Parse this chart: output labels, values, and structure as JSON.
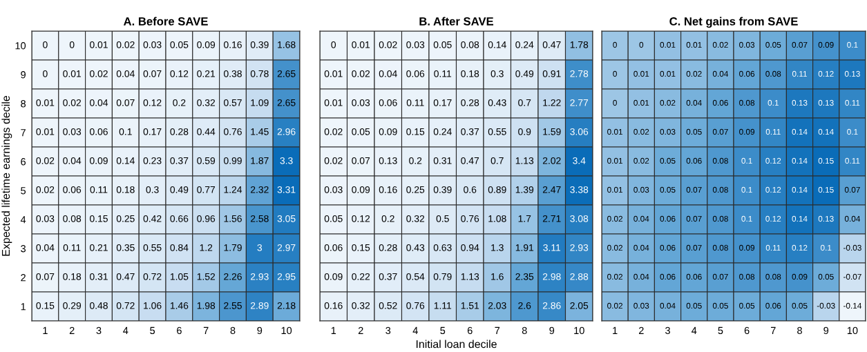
{
  "chart_data": [
    {
      "type": "heatmap",
      "title": "A. Before SAVE",
      "ylabel": "Expected lifetime earnings decile",
      "data_labels": true,
      "categories": [
        "1",
        "2",
        "3",
        "4",
        "5",
        "6",
        "7",
        "8",
        "9",
        "10"
      ],
      "y_categories": [
        "10",
        "9",
        "8",
        "7",
        "6",
        "5",
        "4",
        "3",
        "2",
        "1"
      ],
      "cells": [
        [
          0,
          0,
          0.01,
          0.02,
          0.03,
          0.05,
          0.09,
          0.16,
          0.39,
          1.68
        ],
        [
          0,
          0.01,
          0.02,
          0.04,
          0.07,
          0.12,
          0.21,
          0.38,
          0.78,
          2.65
        ],
        [
          0.01,
          0.02,
          0.04,
          0.07,
          0.12,
          0.2,
          0.32,
          0.57,
          1.09,
          2.65
        ],
        [
          0.01,
          0.03,
          0.06,
          0.1,
          0.17,
          0.28,
          0.44,
          0.76,
          1.45,
          2.96
        ],
        [
          0.02,
          0.04,
          0.09,
          0.14,
          0.23,
          0.37,
          0.59,
          0.99,
          1.87,
          3.3
        ],
        [
          0.02,
          0.06,
          0.11,
          0.18,
          0.3,
          0.49,
          0.77,
          1.24,
          2.32,
          3.31
        ],
        [
          0.03,
          0.08,
          0.15,
          0.25,
          0.42,
          0.66,
          0.96,
          1.56,
          2.58,
          3.05
        ],
        [
          0.04,
          0.11,
          0.21,
          0.35,
          0.55,
          0.84,
          1.2,
          1.79,
          3,
          2.97
        ],
        [
          0.07,
          0.18,
          0.31,
          0.47,
          0.72,
          1.05,
          1.52,
          2.26,
          2.93,
          2.95
        ],
        [
          0.15,
          0.29,
          0.48,
          0.72,
          1.06,
          1.46,
          1.98,
          2.55,
          2.89,
          2.18
        ]
      ]
    },
    {
      "type": "heatmap",
      "title": "B. After SAVE",
      "xlabel": "Initial loan decile",
      "data_labels": true,
      "tick_labels": "x",
      "categories": [
        "1",
        "2",
        "3",
        "4",
        "5",
        "6",
        "7",
        "8",
        "9",
        "10"
      ],
      "y_categories": [
        "10",
        "9",
        "8",
        "7",
        "6",
        "5",
        "4",
        "3",
        "2",
        "1"
      ],
      "cells": [
        [
          0,
          0.01,
          0.02,
          0.03,
          0.05,
          0.08,
          0.14,
          0.24,
          0.47,
          1.78
        ],
        [
          0.01,
          0.02,
          0.04,
          0.06,
          0.11,
          0.18,
          0.3,
          0.49,
          0.91,
          2.78
        ],
        [
          0.01,
          0.03,
          0.06,
          0.11,
          0.17,
          0.28,
          0.43,
          0.7,
          1.22,
          2.77
        ],
        [
          0.02,
          0.05,
          0.09,
          0.15,
          0.24,
          0.37,
          0.55,
          0.9,
          1.59,
          3.06
        ],
        [
          0.02,
          0.07,
          0.13,
          0.2,
          0.31,
          0.47,
          0.7,
          1.13,
          2.02,
          3.4
        ],
        [
          0.03,
          0.09,
          0.16,
          0.25,
          0.39,
          0.6,
          0.89,
          1.39,
          2.47,
          3.38
        ],
        [
          0.05,
          0.12,
          0.2,
          0.32,
          0.5,
          0.76,
          1.08,
          1.7,
          2.71,
          3.08
        ],
        [
          0.06,
          0.15,
          0.28,
          0.43,
          0.63,
          0.94,
          1.3,
          1.91,
          3.11,
          2.93
        ],
        [
          0.09,
          0.22,
          0.37,
          0.54,
          0.79,
          1.13,
          1.6,
          2.35,
          2.98,
          2.88
        ],
        [
          0.16,
          0.32,
          0.52,
          0.76,
          1.11,
          1.51,
          2.03,
          2.6,
          2.86,
          2.05
        ]
      ]
    },
    {
      "type": "heatmap",
      "title": "C. Net gains from SAVE",
      "data_labels": true,
      "tick_labels": "x",
      "categories": [
        "1",
        "2",
        "3",
        "4",
        "5",
        "6",
        "7",
        "8",
        "9",
        "10"
      ],
      "y_categories": [
        "10",
        "9",
        "8",
        "7",
        "6",
        "5",
        "4",
        "3",
        "2",
        "1"
      ],
      "cells": [
        [
          0,
          0,
          0.01,
          0.01,
          0.02,
          0.03,
          0.05,
          0.07,
          0.09,
          0.1
        ],
        [
          0,
          0.01,
          0.01,
          0.02,
          0.04,
          0.06,
          0.08,
          0.11,
          0.12,
          0.13
        ],
        [
          0,
          0.01,
          0.02,
          0.04,
          0.06,
          0.08,
          0.1,
          0.13,
          0.13,
          0.11
        ],
        [
          0.01,
          0.02,
          0.03,
          0.05,
          0.07,
          0.09,
          0.11,
          0.14,
          0.14,
          0.1
        ],
        [
          0.01,
          0.02,
          0.05,
          0.06,
          0.08,
          0.1,
          0.12,
          0.14,
          0.15,
          0.11
        ],
        [
          0.01,
          0.03,
          0.05,
          0.07,
          0.08,
          0.1,
          0.12,
          0.14,
          0.15,
          0.07
        ],
        [
          0.02,
          0.04,
          0.06,
          0.07,
          0.08,
          0.1,
          0.12,
          0.14,
          0.13,
          0.04
        ],
        [
          0.02,
          0.04,
          0.06,
          0.07,
          0.08,
          0.09,
          0.11,
          0.12,
          0.1,
          -0.03
        ],
        [
          0.02,
          0.04,
          0.06,
          0.06,
          0.07,
          0.08,
          0.08,
          0.09,
          0.05,
          -0.07
        ],
        [
          0.02,
          0.03,
          0.04,
          0.05,
          0.05,
          0.05,
          0.06,
          0.05,
          -0.03,
          -0.14
        ]
      ]
    }
  ]
}
